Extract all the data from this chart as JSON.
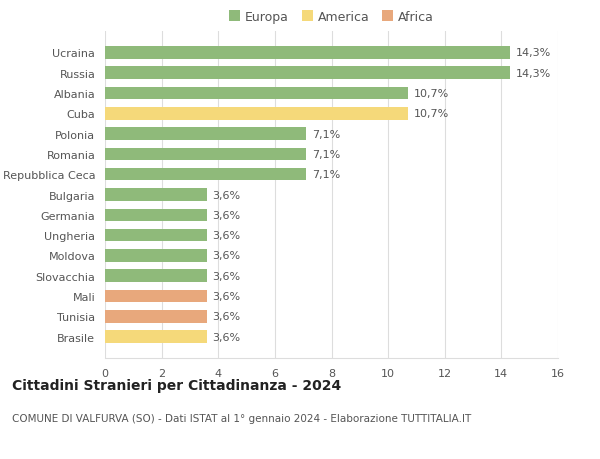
{
  "countries": [
    "Ucraina",
    "Russia",
    "Albania",
    "Cuba",
    "Polonia",
    "Romania",
    "Repubblica Ceca",
    "Bulgaria",
    "Germania",
    "Ungheria",
    "Moldova",
    "Slovacchia",
    "Mali",
    "Tunisia",
    "Brasile"
  ],
  "values": [
    14.3,
    14.3,
    10.7,
    10.7,
    7.1,
    7.1,
    7.1,
    3.6,
    3.6,
    3.6,
    3.6,
    3.6,
    3.6,
    3.6,
    3.6
  ],
  "labels": [
    "14,3%",
    "14,3%",
    "10,7%",
    "10,7%",
    "7,1%",
    "7,1%",
    "7,1%",
    "3,6%",
    "3,6%",
    "3,6%",
    "3,6%",
    "3,6%",
    "3,6%",
    "3,6%",
    "3,6%"
  ],
  "colors": [
    "#8fba7a",
    "#8fba7a",
    "#8fba7a",
    "#f5d97a",
    "#8fba7a",
    "#8fba7a",
    "#8fba7a",
    "#8fba7a",
    "#8fba7a",
    "#8fba7a",
    "#8fba7a",
    "#8fba7a",
    "#e8a87c",
    "#e8a87c",
    "#f5d97a"
  ],
  "legend_labels": [
    "Europa",
    "America",
    "Africa"
  ],
  "legend_colors": [
    "#8fba7a",
    "#f5d97a",
    "#e8a87c"
  ],
  "xlim": [
    0,
    16
  ],
  "xticks": [
    0,
    2,
    4,
    6,
    8,
    10,
    12,
    14,
    16
  ],
  "title": "Cittadini Stranieri per Cittadinanza - 2024",
  "subtitle": "COMUNE DI VALFURVA (SO) - Dati ISTAT al 1° gennaio 2024 - Elaborazione TUTTITALIA.IT",
  "bg_color": "#ffffff",
  "grid_color": "#dddddd",
  "bar_height": 0.62,
  "title_fontsize": 10,
  "subtitle_fontsize": 7.5,
  "label_fontsize": 8,
  "tick_fontsize": 8,
  "legend_fontsize": 9
}
